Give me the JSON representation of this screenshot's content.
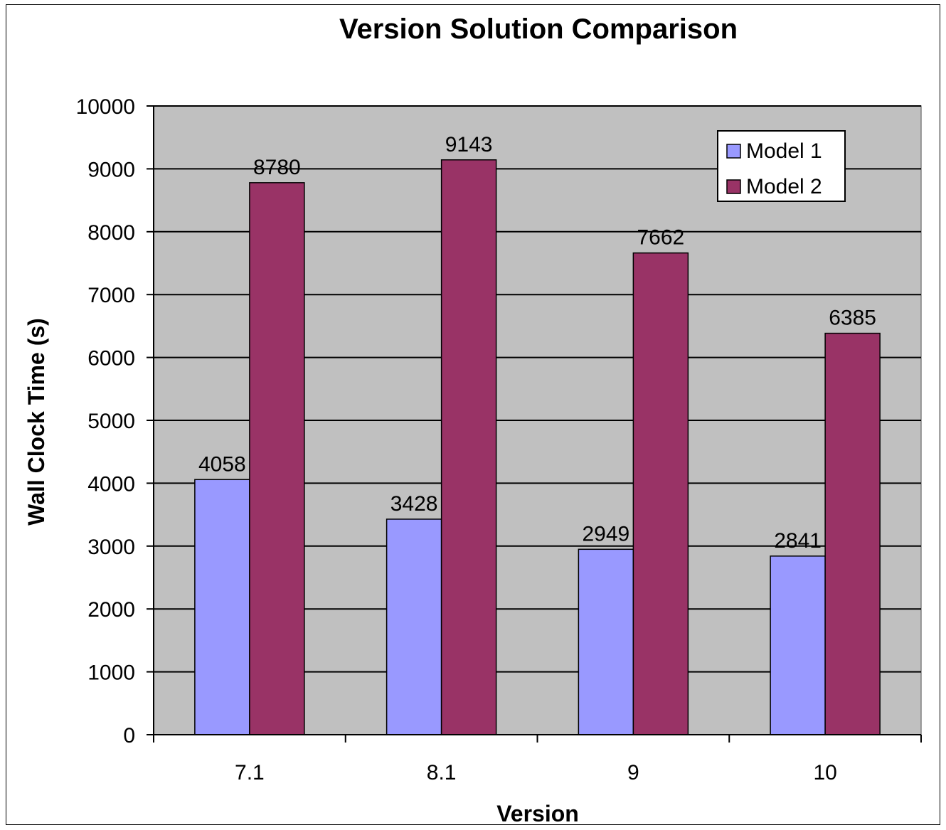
{
  "chart_data": {
    "type": "bar",
    "title": "Version Solution Comparison",
    "xlabel": "Version",
    "ylabel": "Wall Clock Time (s)",
    "categories": [
      "7.1",
      "8.1",
      "9",
      "10"
    ],
    "series": [
      {
        "name": "Model 1",
        "values": [
          4058,
          3428,
          2949,
          2841
        ],
        "color": "#9999ff"
      },
      {
        "name": "Model 2",
        "values": [
          8780,
          9143,
          7662,
          6385
        ],
        "color": "#993366"
      }
    ],
    "ylim": [
      0,
      10000
    ],
    "yticks": [
      "0",
      "1000",
      "2000",
      "3000",
      "4000",
      "5000",
      "6000",
      "7000",
      "8000",
      "9000",
      "10000"
    ],
    "grid": true,
    "legend_position": "top-right",
    "plot_background": "#c0c0c0"
  }
}
